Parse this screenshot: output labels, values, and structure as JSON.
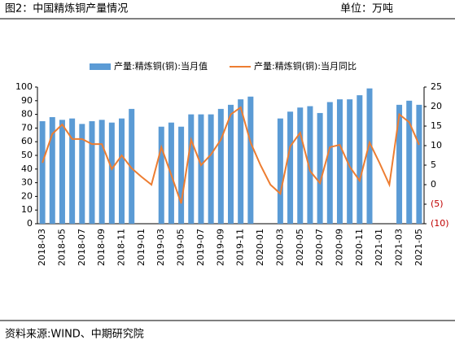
{
  "chart_data": {
    "type": "bar",
    "title": "图2：中国精炼铜产量情况",
    "unit_label": "单位：万吨",
    "source": "资料来源:WIND、中期研究院",
    "categories": [
      "2018-03",
      null,
      "2018-05",
      null,
      "2018-07",
      null,
      "2018-09",
      null,
      "2018-11",
      null,
      "2019-01",
      null,
      "2019-03",
      null,
      "2019-05",
      null,
      "2019-07",
      null,
      "2019-09",
      null,
      "2019-11",
      null,
      "2020-01",
      null,
      "2020-03",
      null,
      "2020-05",
      null,
      "2020-07",
      null,
      "2020-09",
      null,
      "2020-11",
      null,
      "2021-01",
      null,
      "2021-03",
      null,
      "2021-05"
    ],
    "series": [
      {
        "name": "产量:精炼铜(铜):当月值",
        "color": "#5b9bd5",
        "type": "bar",
        "values": [
          75,
          78,
          76,
          77,
          73,
          75,
          76,
          74,
          77,
          84,
          null,
          null,
          71,
          74,
          71,
          80,
          80,
          80,
          84,
          87,
          91,
          93,
          null,
          null,
          77,
          82,
          85,
          86,
          81,
          89,
          91,
          91,
          94,
          99,
          null,
          null,
          87,
          90,
          87
        ]
      },
      {
        "name": "产量:精炼铜(铜):当月同比",
        "color": "#ed7d31",
        "type": "line",
        "axis": "y2",
        "values": [
          5.6,
          13,
          15.4,
          11.7,
          11.7,
          10.4,
          10.4,
          4,
          7.5,
          4.2,
          2,
          0,
          9.6,
          2.5,
          -4.8,
          11.5,
          5,
          7.7,
          11.5,
          18,
          19.8,
          10.8,
          5,
          0,
          -2.3,
          9.8,
          13.3,
          3.5,
          0.4,
          9.6,
          10.2,
          4.6,
          1,
          10.8,
          5.6,
          0,
          18,
          16,
          10.2
        ]
      }
    ],
    "ylim": [
      0,
      100
    ],
    "yticks": [
      0,
      10,
      20,
      30,
      40,
      50,
      60,
      70,
      80,
      90,
      100
    ],
    "y2lim": [
      -10,
      25
    ],
    "y2ticks": [
      {
        "value": -10,
        "label": "(10)"
      },
      {
        "value": -5,
        "label": "(5)"
      },
      0,
      5,
      10,
      15,
      20,
      25
    ],
    "negative_label_color": "#c00000"
  }
}
